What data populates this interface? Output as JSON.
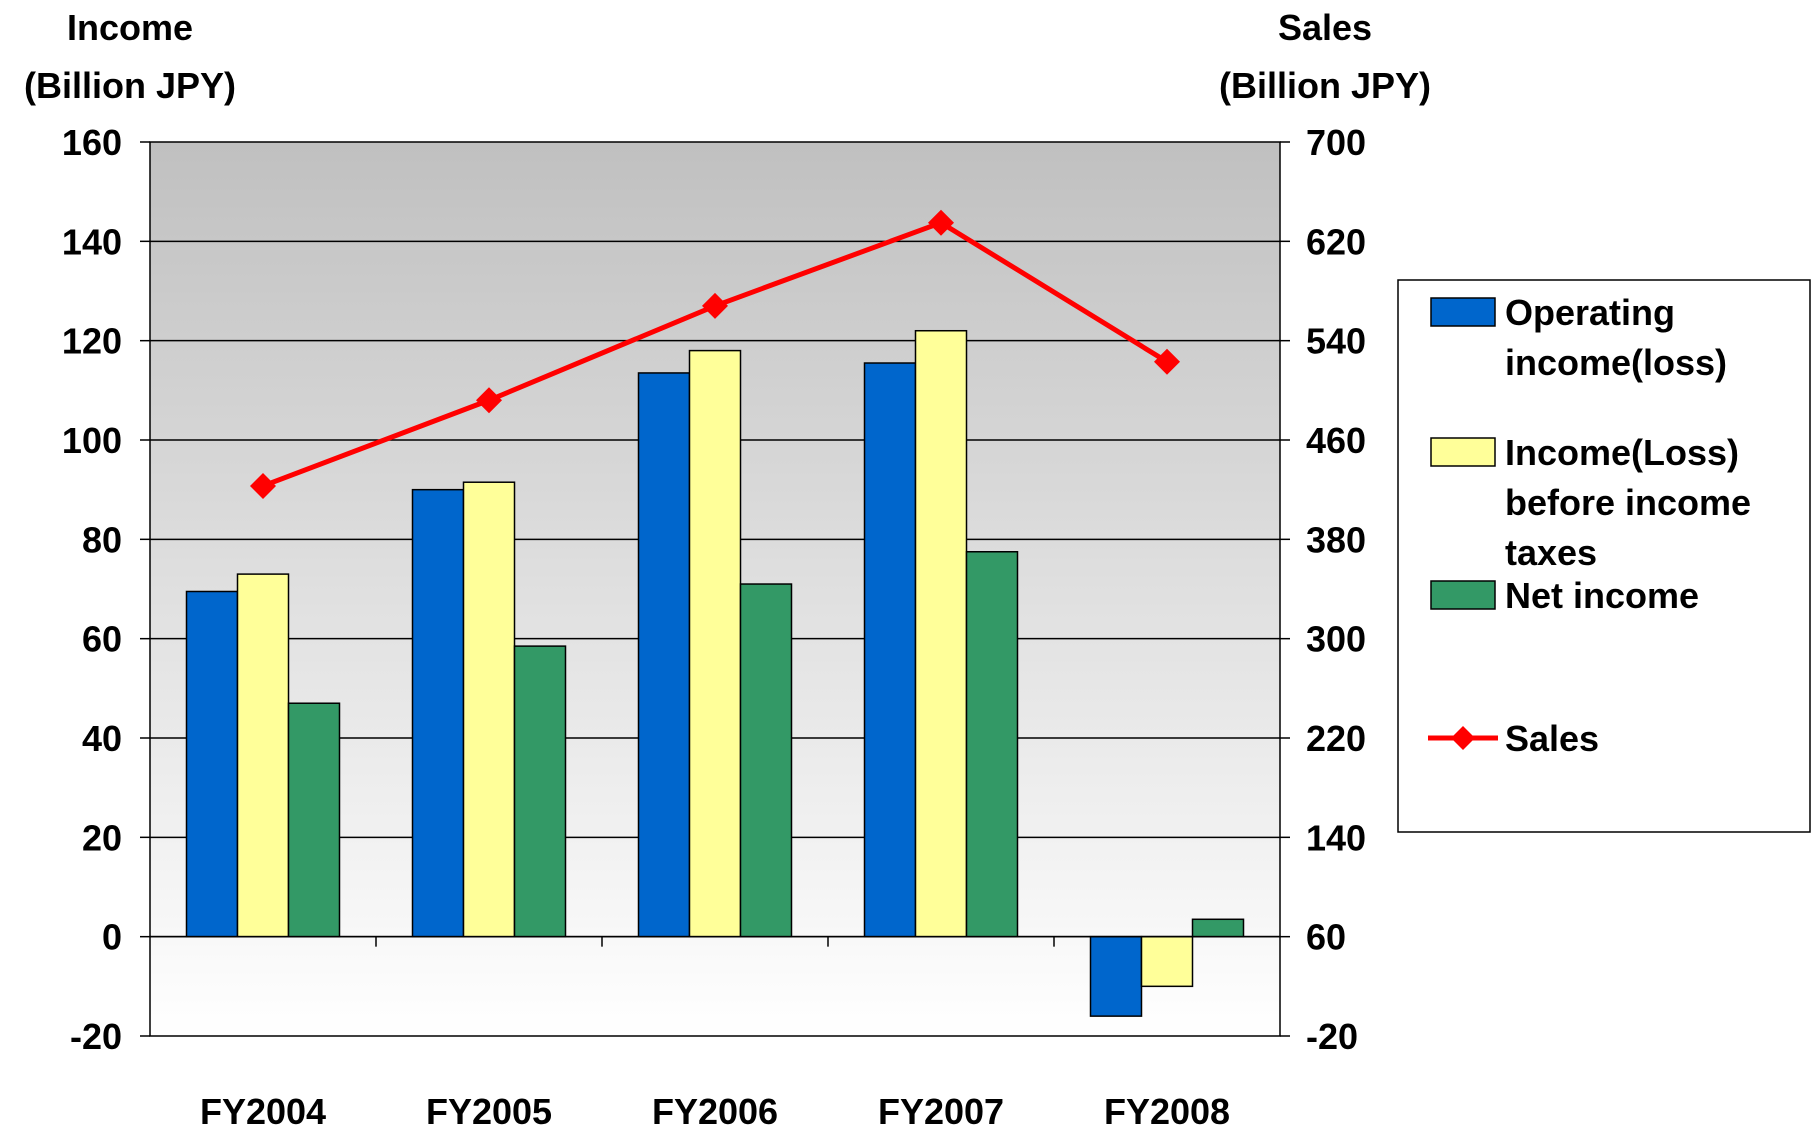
{
  "chart_data": {
    "type": "bar",
    "categories": [
      "FY2004",
      "FY2005",
      "FY2006",
      "FY2007",
      "FY2008"
    ],
    "left_axis": {
      "label_line1": "Income",
      "label_line2": "(Billion JPY)",
      "ylim": [
        -20,
        160
      ],
      "ticks": [
        "160",
        "140",
        "120",
        "100",
        "80",
        "60",
        "40",
        "20",
        "0",
        "-20"
      ],
      "tick_values": [
        160,
        140,
        120,
        100,
        80,
        60,
        40,
        20,
        0,
        -20
      ]
    },
    "right_axis": {
      "label_line1": "Sales",
      "label_line2": "(Billion JPY)",
      "ylim": [
        -20,
        700
      ],
      "ticks": [
        "700",
        "620",
        "540",
        "460",
        "380",
        "300",
        "220",
        "140",
        "60",
        "-20"
      ]
    },
    "series": [
      {
        "name": "Operating income(loss)",
        "type": "bar",
        "axis": "left",
        "color": "#0066CC",
        "values": [
          69.5,
          90,
          113.5,
          115.5,
          -16
        ]
      },
      {
        "name": "Income(Loss) before income taxes",
        "type": "bar",
        "axis": "left",
        "color": "#FFFF99",
        "values": [
          73,
          91.5,
          118,
          122,
          -10
        ]
      },
      {
        "name": "Net income",
        "type": "bar",
        "axis": "left",
        "color": "#339966",
        "values": [
          47,
          58.5,
          71,
          77.5,
          3.5
        ]
      },
      {
        "name": "Sales",
        "type": "line",
        "axis": "right",
        "color": "#FF0000",
        "values": [
          423,
          492,
          568,
          635,
          523
        ]
      }
    ],
    "legend": {
      "placement": "right",
      "entries": [
        {
          "lines": [
            "Operating",
            "income(loss)"
          ]
        },
        {
          "lines": [
            "Income(Loss)",
            "before income",
            "taxes"
          ]
        },
        {
          "lines": [
            "Net income"
          ]
        },
        {
          "lines": [
            "Sales"
          ]
        }
      ]
    },
    "grid": true,
    "colors": {
      "plot_top": "#c0c0c0",
      "plot_bottom": "#ffffff",
      "line": "#FF0000"
    }
  }
}
